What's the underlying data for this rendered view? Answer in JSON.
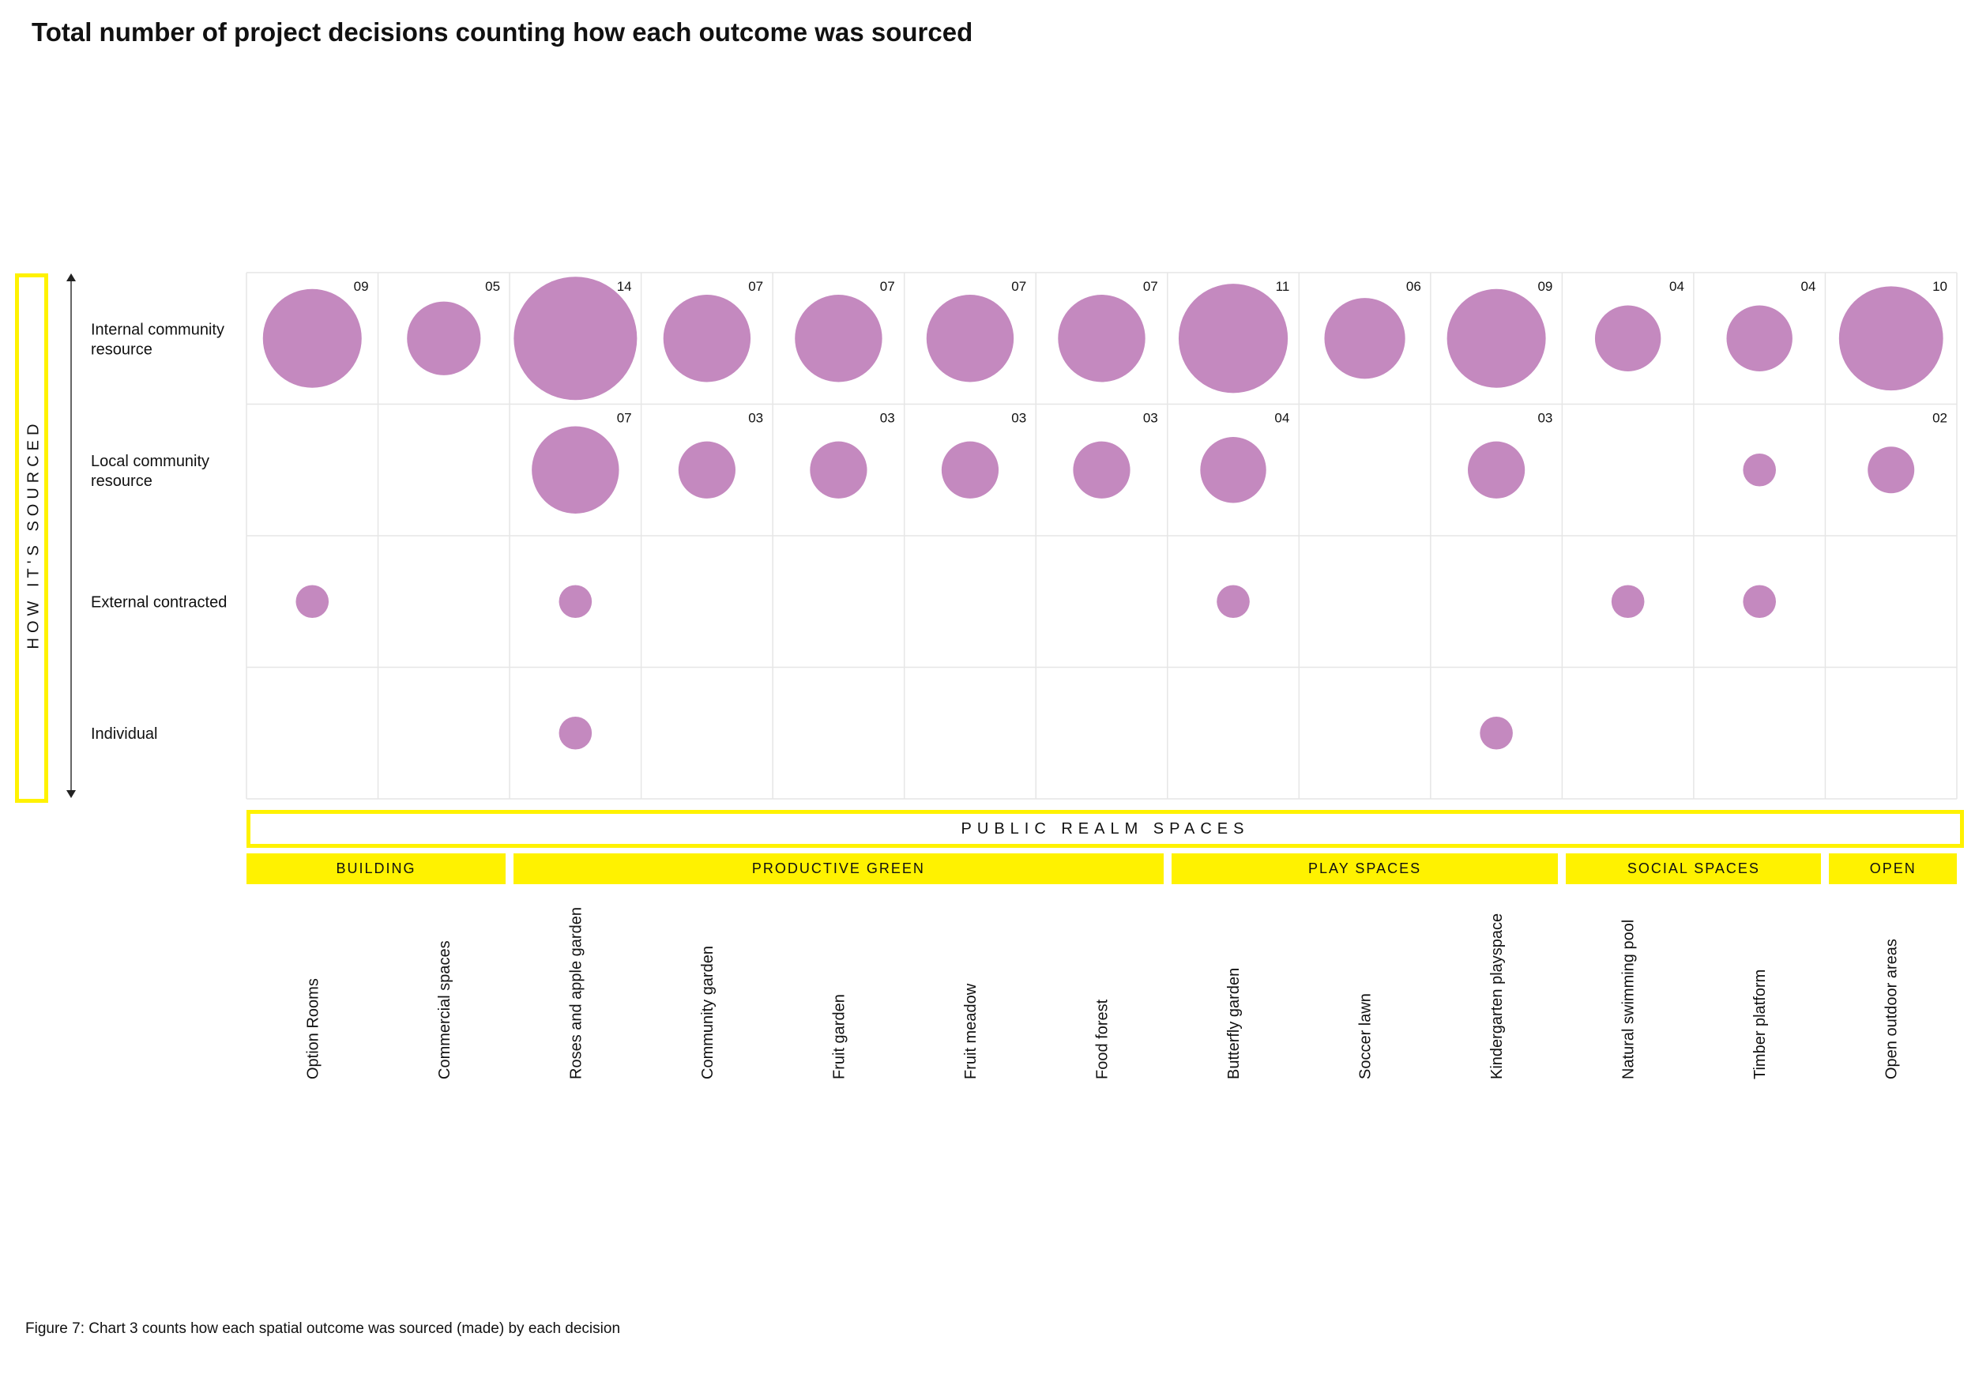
{
  "title": "Total number of project decisions counting how each outcome was sourced",
  "caption": "Figure 7: Chart 3 counts how each spatial outcome was sourced (made) by each decision",
  "axis_label": "HOW IT'S SOURCED",
  "realm_label": "PUBLIC REALM SPACES",
  "colors": {
    "bubble": "#c489bf",
    "highlight": "#fff200",
    "grid": "#e6e6e6"
  },
  "chart_data": {
    "type": "bubble",
    "title": "Total number of project decisions counting how each outcome was sourced",
    "ylabel": "HOW IT'S SOURCED",
    "rows": [
      "Internal community resource",
      "Local community resource",
      "External contracted",
      "Individual"
    ],
    "categories": [
      "Option Rooms",
      "Commercial spaces",
      "Roses and apple garden",
      "Community garden",
      "Fruit garden",
      "Fruit meadow",
      "Food forest",
      "Butterfly garden",
      "Soccer lawn",
      "Kindergarten playspace",
      "Natural swimming pool",
      "Timber platform",
      "Open outdoor areas"
    ],
    "groups": [
      {
        "name": "BUILDING",
        "span": [
          0,
          1
        ]
      },
      {
        "name": "PRODUCTIVE GREEN",
        "span": [
          2,
          6
        ]
      },
      {
        "name": "PLAY SPACES",
        "span": [
          7,
          9
        ]
      },
      {
        "name": "SOCIAL SPACES",
        "span": [
          10,
          11
        ]
      },
      {
        "name": "OPEN",
        "span": [
          12,
          12
        ]
      }
    ],
    "values": [
      [
        9,
        5,
        14,
        7,
        7,
        7,
        7,
        11,
        6,
        9,
        4,
        4,
        10
      ],
      [
        0,
        0,
        7,
        3,
        3,
        3,
        3,
        4,
        0,
        3,
        0,
        1,
        2
      ],
      [
        1,
        0,
        1,
        0,
        0,
        0,
        0,
        1,
        0,
        0,
        1,
        1,
        0
      ],
      [
        0,
        0,
        1,
        0,
        0,
        0,
        0,
        0,
        0,
        1,
        0,
        0,
        0
      ]
    ],
    "labels": [
      [
        "09",
        "05",
        "14",
        "07",
        "07",
        "07",
        "07",
        "11",
        "06",
        "09",
        "04",
        "04",
        "10"
      ],
      [
        "",
        "",
        "07",
        "03",
        "03",
        "03",
        "03",
        "04",
        "",
        "03",
        "",
        "",
        "02"
      ],
      [
        "",
        "",
        "",
        "",
        "",
        "",
        "",
        "",
        "",
        "",
        "",
        "",
        ""
      ],
      [
        "",
        "",
        "",
        "",
        "",
        "",
        "",
        "",
        "",
        "",
        "",
        "",
        ""
      ]
    ]
  }
}
